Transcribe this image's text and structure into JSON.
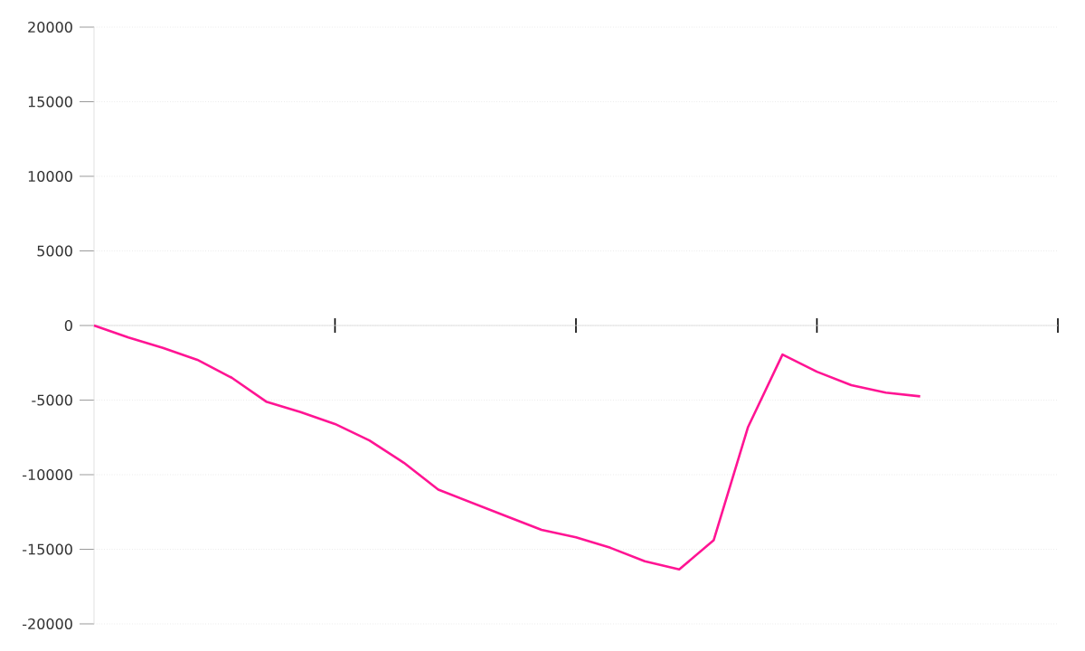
{
  "chart_data": {
    "type": "line",
    "categories": [
      null,
      null,
      null,
      null,
      null,
      null,
      null,
      null,
      null,
      null,
      null,
      null,
      null,
      null,
      null,
      null,
      null,
      null,
      null,
      null,
      null,
      null,
      null,
      null,
      null,
      null,
      null,
      null,
      null
    ],
    "values": [
      0,
      -800,
      -1500,
      -2300,
      -3500,
      -5100,
      -5800,
      -6600,
      -7700,
      -9200,
      -11000,
      -11900,
      -12800,
      -13700,
      -14200,
      -14900,
      -15800,
      -16350,
      -14400,
      -6800,
      -1950,
      -3100,
      -4000,
      -4500,
      -4750,
      null,
      null,
      null,
      null
    ],
    "color": "#ff1493",
    "ylim": [
      -20000,
      20000
    ],
    "yticks": [
      -20000,
      -15000,
      -10000,
      -5000,
      0,
      5000,
      10000,
      15000,
      20000
    ],
    "grid": "y",
    "marker": "none"
  }
}
